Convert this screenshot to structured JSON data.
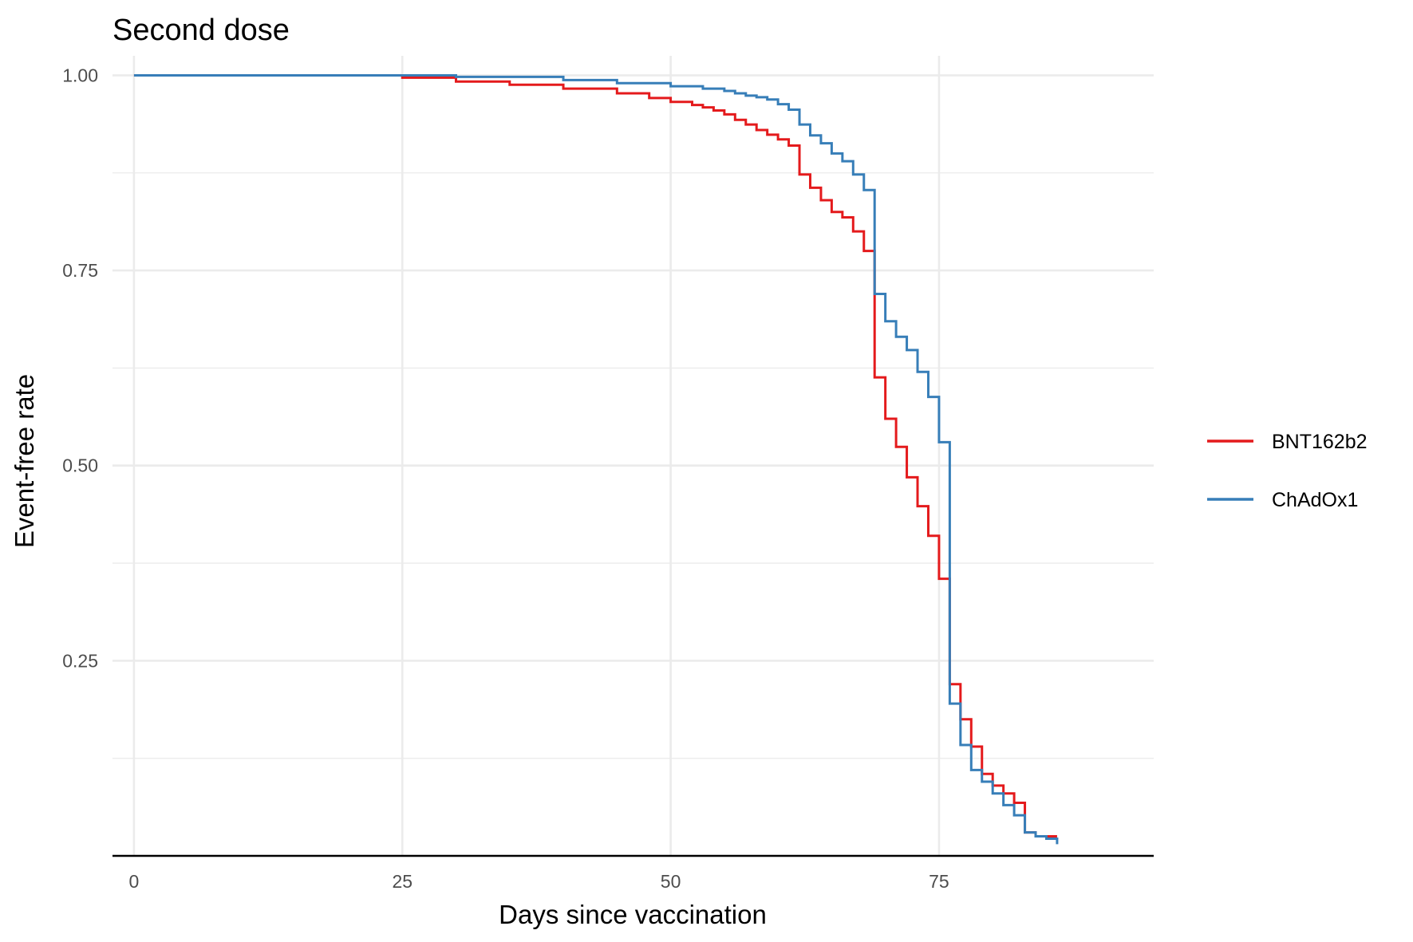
{
  "chart_data": {
    "type": "line",
    "title": "Second dose",
    "xlabel": "Days since vaccination",
    "ylabel": "Event-free rate",
    "xlim": [
      -2,
      95
    ],
    "ylim": [
      0.0,
      1.025
    ],
    "x_ticks": [
      0,
      25,
      50,
      75
    ],
    "x_tick_labels": [
      "0",
      "25",
      "50",
      "75"
    ],
    "y_ticks": [
      0.25,
      0.5,
      0.75,
      1.0
    ],
    "y_tick_labels": [
      "0.25",
      "0.50",
      "0.75",
      "1.00"
    ],
    "y_minor_ticks": [
      0.125,
      0.375,
      0.625,
      0.875
    ],
    "grid": true,
    "legend_position": "right",
    "step": true,
    "series": [
      {
        "name": "BNT162b2",
        "color": "#E41A1C",
        "x": [
          0,
          20,
          25,
          30,
          35,
          40,
          45,
          48,
          50,
          52,
          53,
          54,
          55,
          56,
          57,
          58,
          59,
          60,
          61,
          62,
          63,
          64,
          65,
          66,
          67,
          68,
          69,
          70,
          71,
          72,
          73,
          74,
          75,
          76,
          77,
          78,
          79,
          80,
          81,
          82,
          83,
          84,
          85,
          86
        ],
        "y": [
          1.0,
          1.0,
          0.997,
          0.992,
          0.988,
          0.983,
          0.977,
          0.971,
          0.966,
          0.962,
          0.959,
          0.955,
          0.95,
          0.943,
          0.937,
          0.93,
          0.924,
          0.918,
          0.91,
          0.873,
          0.856,
          0.84,
          0.825,
          0.818,
          0.8,
          0.775,
          0.613,
          0.56,
          0.524,
          0.485,
          0.448,
          0.41,
          0.355,
          0.22,
          0.175,
          0.14,
          0.105,
          0.09,
          0.08,
          0.068,
          0.03,
          0.025,
          0.025,
          0.025
        ]
      },
      {
        "name": "ChAdOx1",
        "color": "#377EB8",
        "x": [
          0,
          30,
          40,
          45,
          50,
          53,
          55,
          56,
          57,
          58,
          59,
          60,
          61,
          62,
          63,
          64,
          65,
          66,
          67,
          68,
          69,
          70,
          71,
          72,
          73,
          74,
          75,
          76,
          77,
          78,
          79,
          80,
          81,
          82,
          83,
          84,
          85,
          86
        ],
        "y": [
          1.0,
          0.998,
          0.994,
          0.99,
          0.986,
          0.983,
          0.98,
          0.977,
          0.974,
          0.972,
          0.969,
          0.963,
          0.956,
          0.937,
          0.923,
          0.913,
          0.9,
          0.89,
          0.873,
          0.853,
          0.72,
          0.685,
          0.665,
          0.648,
          0.62,
          0.588,
          0.53,
          0.195,
          0.142,
          0.11,
          0.095,
          0.08,
          0.065,
          0.052,
          0.03,
          0.025,
          0.022,
          0.015
        ]
      }
    ]
  }
}
